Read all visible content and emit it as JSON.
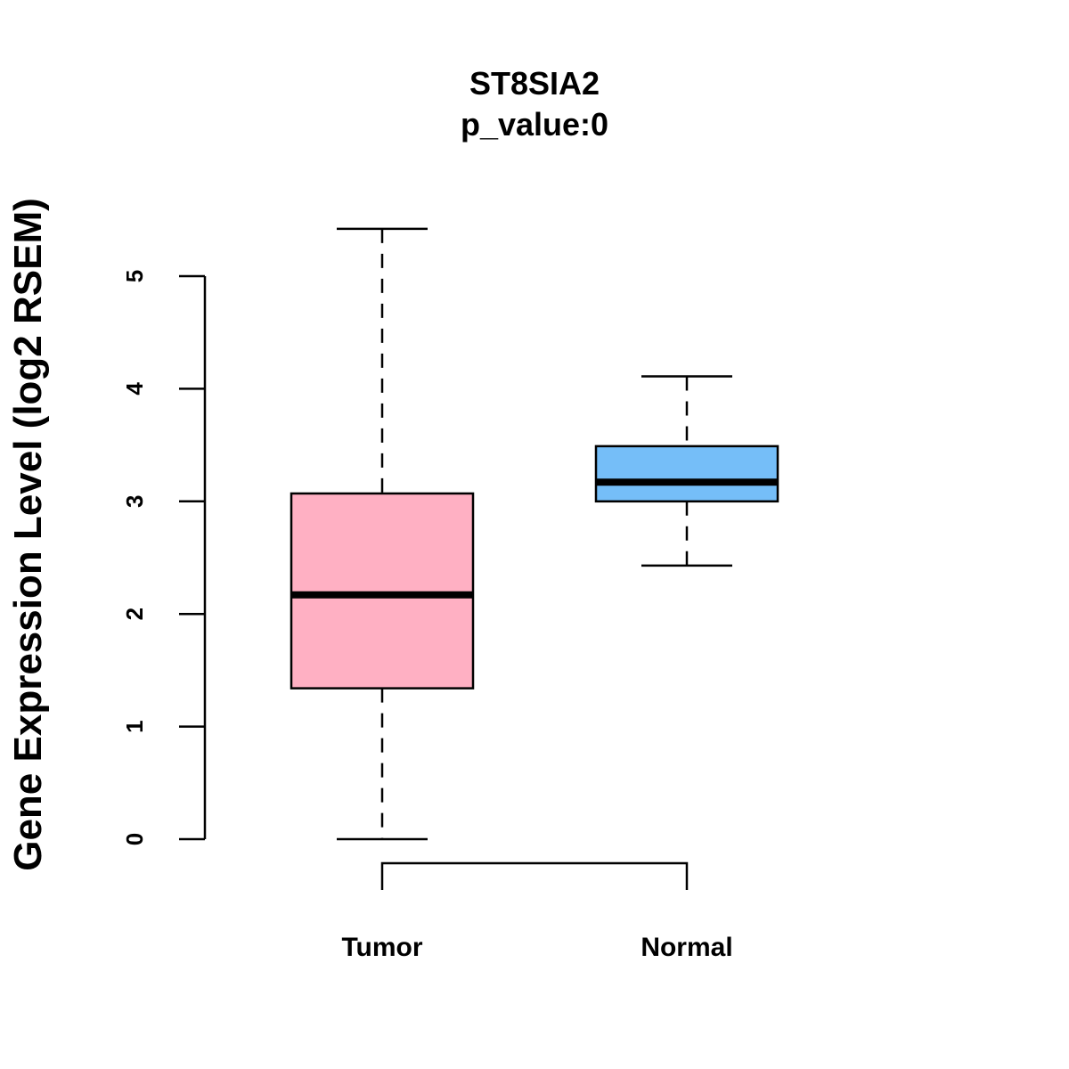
{
  "chart_data": {
    "type": "boxplot",
    "title": "ST8SIA2",
    "subtitle": "p_value:0",
    "xlabel": "",
    "ylabel": "Gene Expression Level (log2 RSEM)",
    "ylim": [
      0,
      5
    ],
    "yticks": [
      0,
      1,
      2,
      3,
      4,
      5
    ],
    "grid": false,
    "categories": [
      "Tumor",
      "Normal"
    ],
    "series": [
      {
        "name": "Tumor",
        "color": "#FFB0C3",
        "whisker_low": 0,
        "q1": 1.34,
        "median": 2.17,
        "q3": 3.07,
        "whisker_high": 5.42
      },
      {
        "name": "Normal",
        "color": "#75BEF8",
        "whisker_low": 2.43,
        "q1": 3.0,
        "median": 3.17,
        "q3": 3.49,
        "whisker_high": 4.11
      }
    ],
    "comparison_bracket": [
      "Tumor",
      "Normal"
    ]
  }
}
